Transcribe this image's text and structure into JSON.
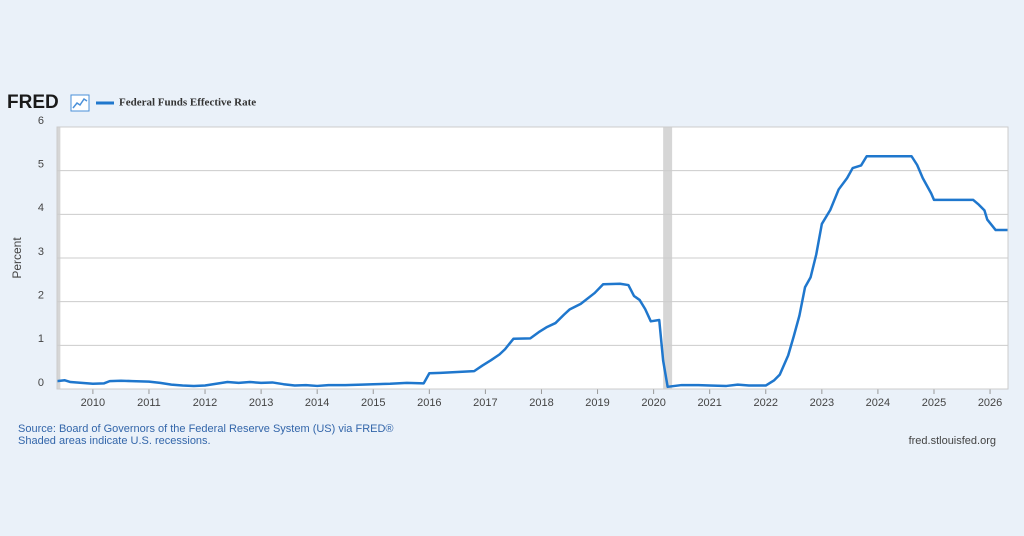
{
  "chart_data": {
    "type": "line",
    "logo": "FRED",
    "ylabel": "Percent",
    "source": "Source: Board of Governors of the Federal Reserve System (US) via FRED®",
    "note": "Shaded areas indicate U.S. recessions.",
    "site": "fred.stlouisfed.org",
    "grid": true,
    "recessions": [
      [
        2007.92,
        2009.42
      ],
      [
        2020.17,
        2020.33
      ]
    ],
    "recession_color": "#cccccc",
    "xlim": [
      2009.36,
      2026.32
    ],
    "xticks": [
      2010,
      2011,
      2012,
      2013,
      2014,
      2015,
      2016,
      2017,
      2018,
      2019,
      2020,
      2021,
      2022,
      2023,
      2024,
      2025,
      2026
    ],
    "ylim": [
      0,
      6
    ],
    "yticks": [
      0,
      1,
      2,
      3,
      4,
      5,
      6
    ],
    "x": [
      2009.36,
      2009.5,
      2009.6,
      2009.8,
      2010.0,
      2010.2,
      2010.3,
      2010.5,
      2010.7,
      2011.0,
      2011.2,
      2011.4,
      2011.6,
      2011.8,
      2012.0,
      2012.2,
      2012.4,
      2012.6,
      2012.8,
      2013.0,
      2013.2,
      2013.4,
      2013.6,
      2013.8,
      2014.0,
      2014.2,
      2014.5,
      2014.8,
      2015.0,
      2015.3,
      2015.6,
      2015.9,
      2016.0,
      2016.2,
      2016.5,
      2016.8,
      2016.95,
      2017.1,
      2017.25,
      2017.35,
      2017.5,
      2017.8,
      2017.95,
      2018.1,
      2018.25,
      2018.4,
      2018.5,
      2018.7,
      2018.95,
      2019.1,
      2019.4,
      2019.55,
      2019.65,
      2019.75,
      2019.85,
      2019.95,
      2020.1,
      2020.17,
      2020.25,
      2020.5,
      2020.8,
      2021.0,
      2021.3,
      2021.5,
      2021.7,
      2022.0,
      2022.15,
      2022.25,
      2022.4,
      2022.5,
      2022.6,
      2022.7,
      2022.8,
      2022.9,
      2023.0,
      2023.15,
      2023.3,
      2023.45,
      2023.55,
      2023.7,
      2023.8,
      2024.6,
      2024.7,
      2024.8,
      2024.95,
      2025.0,
      2025.7,
      2025.8,
      2025.9,
      2025.95,
      2026.05,
      2026.1,
      2026.32
    ],
    "series": [
      {
        "name": "Federal Funds Effective Rate",
        "color": "#1f77cd",
        "values": [
          0.18,
          0.2,
          0.16,
          0.14,
          0.12,
          0.13,
          0.18,
          0.19,
          0.18,
          0.17,
          0.14,
          0.1,
          0.08,
          0.07,
          0.08,
          0.12,
          0.16,
          0.14,
          0.16,
          0.14,
          0.15,
          0.11,
          0.08,
          0.09,
          0.07,
          0.09,
          0.09,
          0.1,
          0.11,
          0.12,
          0.14,
          0.13,
          0.36,
          0.37,
          0.39,
          0.41,
          0.54,
          0.66,
          0.79,
          0.91,
          1.15,
          1.16,
          1.3,
          1.42,
          1.51,
          1.7,
          1.82,
          1.95,
          2.2,
          2.4,
          2.41,
          2.38,
          2.13,
          2.04,
          1.83,
          1.55,
          1.58,
          0.65,
          0.05,
          0.09,
          0.09,
          0.08,
          0.07,
          0.1,
          0.08,
          0.08,
          0.2,
          0.33,
          0.77,
          1.21,
          1.68,
          2.33,
          2.56,
          3.08,
          3.78,
          4.1,
          4.57,
          4.83,
          5.06,
          5.12,
          5.33,
          5.33,
          5.13,
          4.83,
          4.48,
          4.33,
          4.33,
          4.22,
          4.09,
          3.88,
          3.72,
          3.64,
          3.64
        ]
      }
    ]
  }
}
